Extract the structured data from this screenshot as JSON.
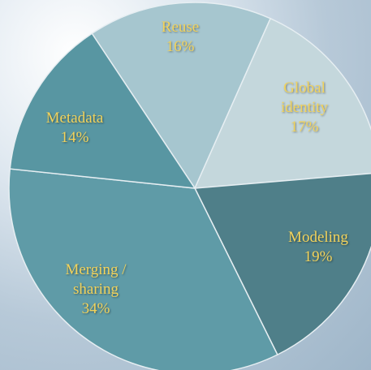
{
  "chart_data": {
    "type": "pie",
    "categories": [
      "Reuse",
      "Global identity",
      "Modeling",
      "Merging / sharing",
      "Metadata"
    ],
    "values": [
      16,
      17,
      19,
      34,
      14
    ],
    "value_labels": [
      "16%",
      "17%",
      "19%",
      "34%",
      "14%"
    ],
    "colors": [
      "#a6c6cf",
      "#c4d7dc",
      "#4f7f89",
      "#5f9ba7",
      "#5896a2"
    ]
  }
}
